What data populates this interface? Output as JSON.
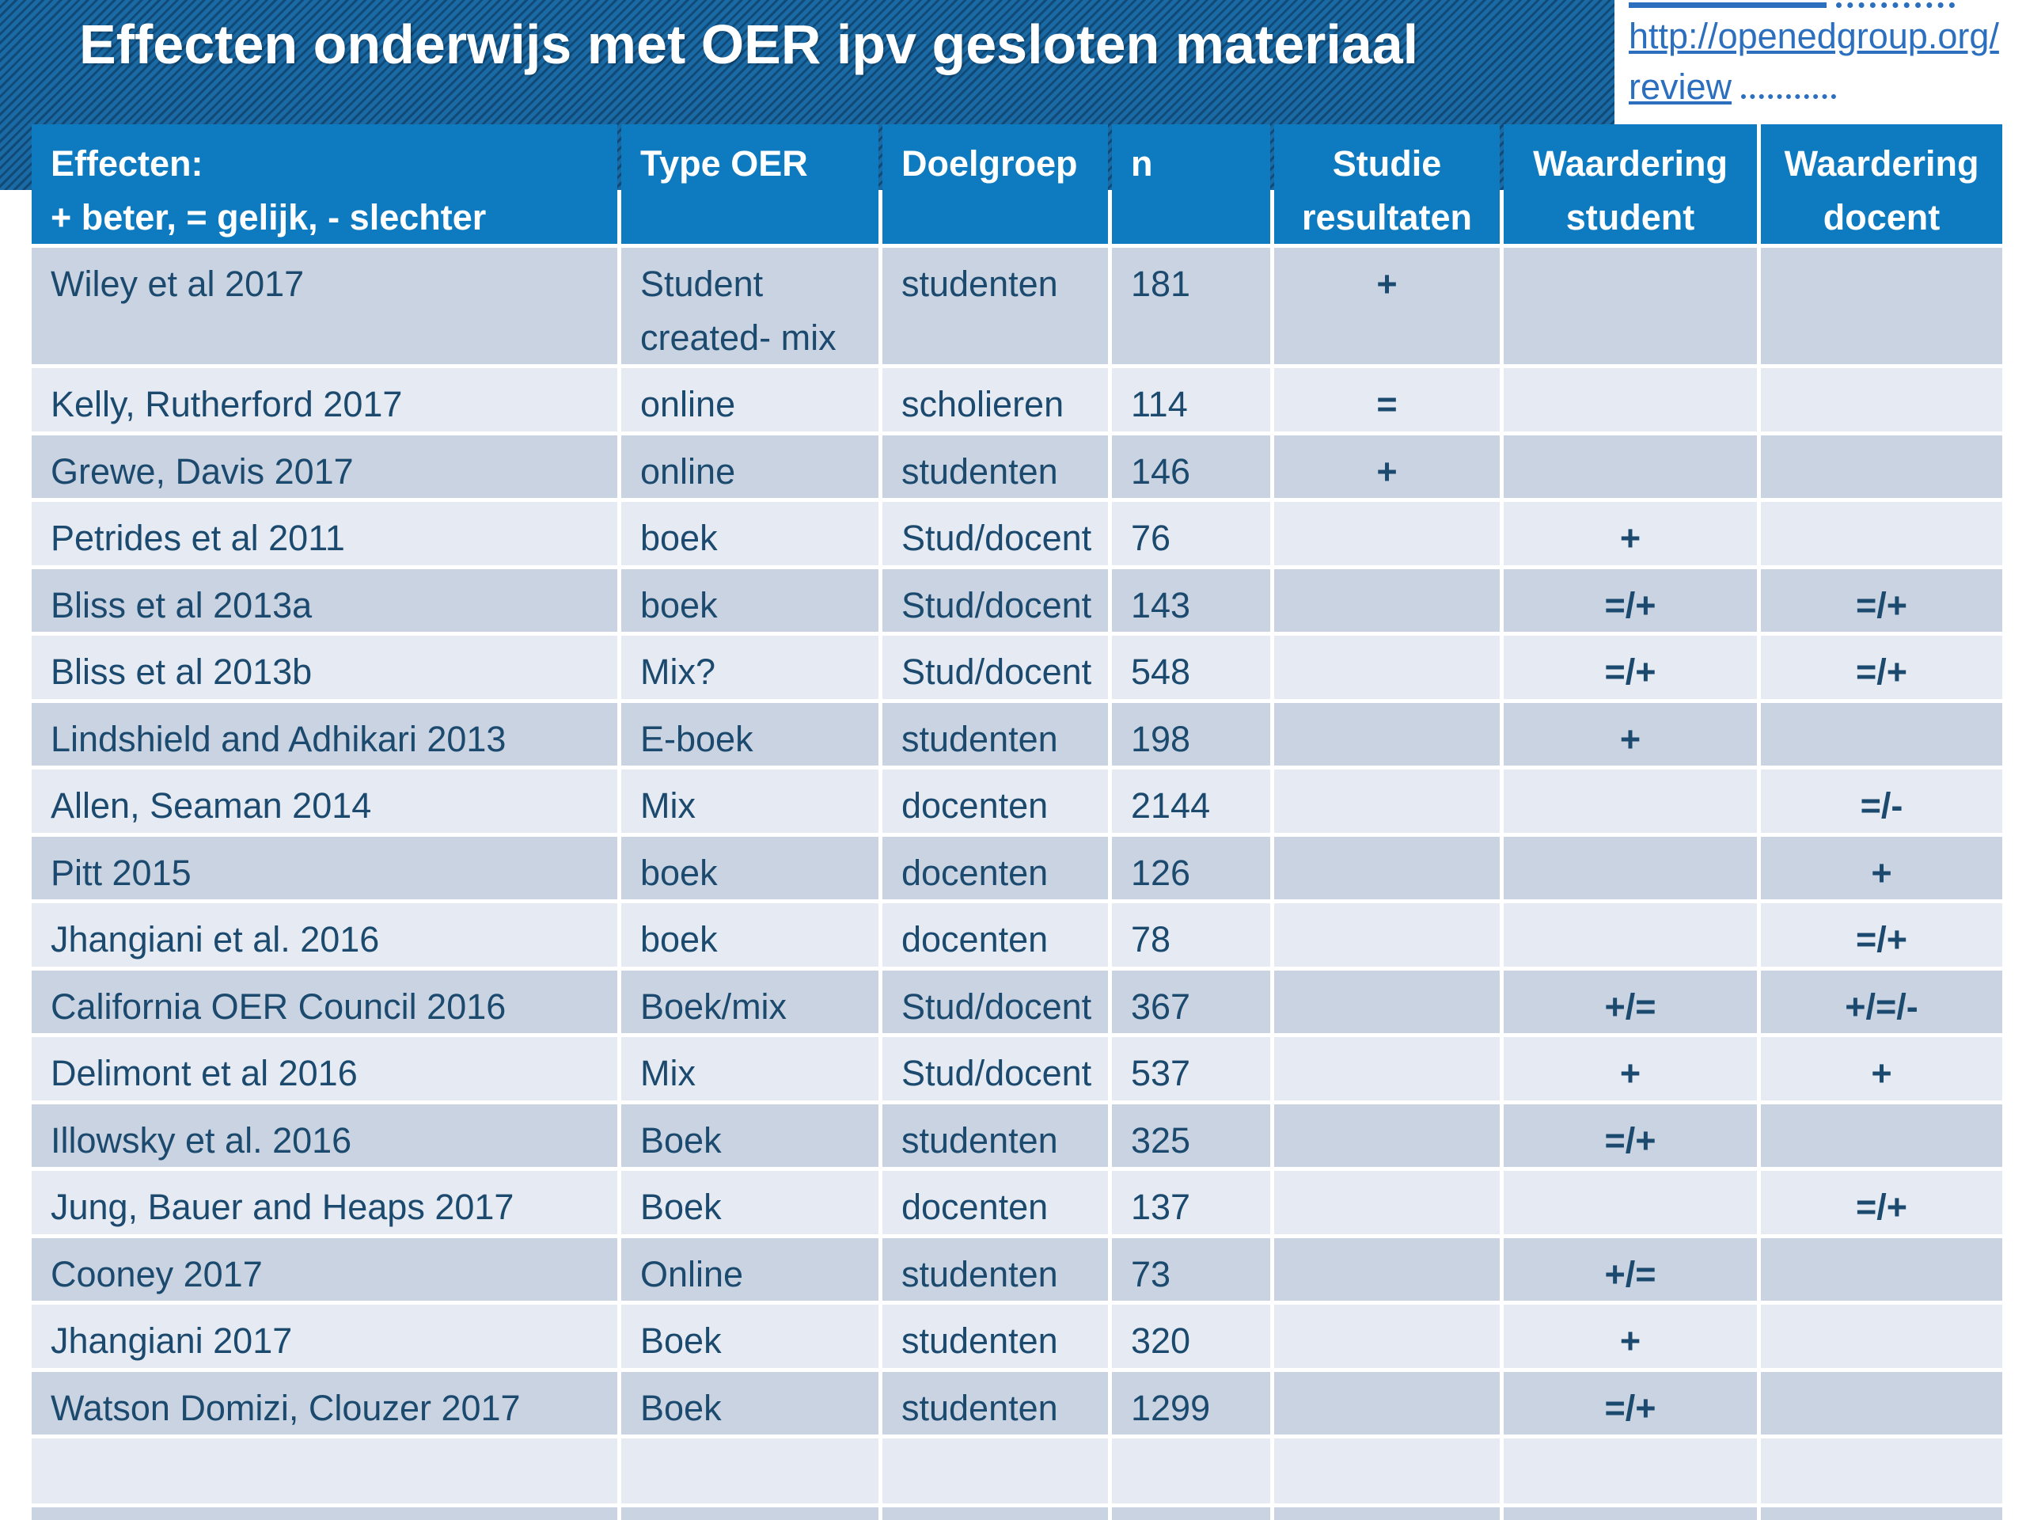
{
  "title": "Effecten onderwijs met OER ipv gesloten materiaal",
  "link": {
    "line1": "http://openedgroup.org/",
    "line2": "review"
  },
  "colors": {
    "band": "#1a6aa6",
    "band_dark": "#114a77",
    "header_bg": "#0e7ac0",
    "row_dark": "#c9d3e1",
    "row_light": "#e6eaf2",
    "text": "#1c4a6e",
    "link": "#2b6fbe"
  },
  "table": {
    "fields": [
      "study",
      "type",
      "group",
      "n",
      "result",
      "student",
      "docent"
    ],
    "columns": [
      {
        "label": "Effecten:",
        "sublabel": "+ beter, = gelijk, - slechter"
      },
      {
        "label": "Type OER"
      },
      {
        "label": "Doelgroep"
      },
      {
        "label": "n"
      },
      {
        "label": "Studie",
        "sublabel": "resultaten"
      },
      {
        "label": "Waardering",
        "sublabel": "student"
      },
      {
        "label": "Waardering",
        "sublabel": "docent"
      }
    ],
    "rows": [
      {
        "study": "Wiley et al 2017",
        "type": "Student created- mix",
        "group": "studenten",
        "n": "181",
        "result": "+",
        "student": "",
        "docent": ""
      },
      {
        "study": "Kelly, Rutherford 2017",
        "type": "online",
        "group": "scholieren",
        "n": "114",
        "result": "=",
        "student": "",
        "docent": ""
      },
      {
        "study": "Grewe, Davis 2017",
        "type": "online",
        "group": "studenten",
        "n": "146",
        "result": "+",
        "student": "",
        "docent": ""
      },
      {
        "study": "Petrides et al 2011",
        "type": "boek",
        "group": "Stud/docent",
        "n": "76",
        "result": "",
        "student": "+",
        "docent": ""
      },
      {
        "study": "Bliss et al 2013a",
        "type": "boek",
        "group": "Stud/docent",
        "n": "143",
        "result": "",
        "student": "=/+",
        "docent": "=/+"
      },
      {
        "study": "Bliss et al 2013b",
        "type": "Mix?",
        "group": "Stud/docent",
        "n": "548",
        "result": "",
        "student": "=/+",
        "docent": "=/+"
      },
      {
        "study": "Lindshield and Adhikari 2013",
        "type": "E-boek",
        "group": "studenten",
        "n": "198",
        "result": "",
        "student": "+",
        "docent": ""
      },
      {
        "study": "Allen, Seaman 2014",
        "type": "Mix",
        "group": "docenten",
        "n": "2144",
        "result": "",
        "student": "",
        "docent": "=/-"
      },
      {
        "study": "Pitt 2015",
        "type": "boek",
        "group": "docenten",
        "n": "126",
        "result": "",
        "student": "",
        "docent": "+"
      },
      {
        "study": "Jhangiani et al. 2016",
        "type": "boek",
        "group": "docenten",
        "n": "78",
        "result": "",
        "student": "",
        "docent": "=/+"
      },
      {
        "study": "California OER Council 2016",
        "type": "Boek/mix",
        "group": "Stud/docent",
        "n": "367",
        "result": "",
        "student": "+/=",
        "docent": "+/=/-"
      },
      {
        "study": "Delimont et al 2016",
        "type": "Mix",
        "group": "Stud/docent",
        "n": "537",
        "result": "",
        "student": "+",
        "docent": "+"
      },
      {
        "study": "Illowsky et al. 2016",
        "type": "Boek",
        "group": "studenten",
        "n": "325",
        "result": "",
        "student": "=/+",
        "docent": ""
      },
      {
        "study": "Jung, Bauer and Heaps 2017",
        "type": "Boek",
        "group": "docenten",
        "n": "137",
        "result": "",
        "student": "",
        "docent": "=/+"
      },
      {
        "study": "Cooney 2017",
        "type": "Online",
        "group": "studenten",
        "n": "73",
        "result": "",
        "student": "+/=",
        "docent": ""
      },
      {
        "study": "Jhangiani  2017",
        "type": "Boek",
        "group": "studenten",
        "n": "320",
        "result": "",
        "student": "+",
        "docent": ""
      },
      {
        "study": "Watson Domizi, Clouzer 2017",
        "type": "Boek",
        "group": "studenten",
        "n": "1299",
        "result": "",
        "student": "=/+",
        "docent": ""
      },
      {
        "study": "",
        "type": "",
        "group": "",
        "n": "",
        "result": "",
        "student": "",
        "docent": ""
      },
      {
        "study": "",
        "type": "",
        "group": "",
        "n": "",
        "result": "",
        "student": "",
        "docent": ""
      }
    ]
  }
}
